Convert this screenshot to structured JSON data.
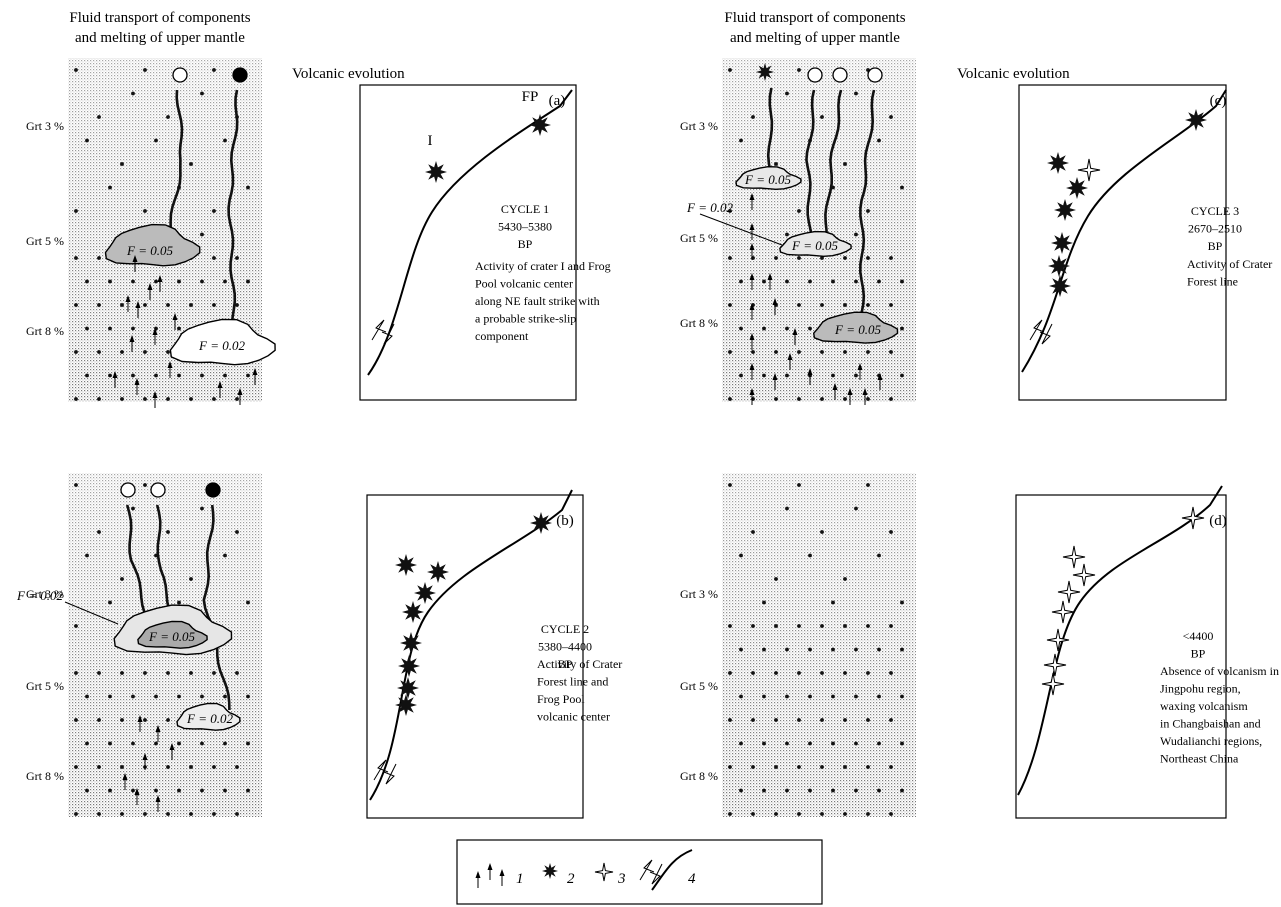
{
  "mantle_panels": [
    {
      "title": [
        "Fluid transport of components",
        "and melting of upper mantle"
      ],
      "grt": [
        "Grt 3 %",
        "Grt 5 %",
        "Grt 8 %"
      ],
      "melts": [
        "F = 0.05",
        "F = 0.02"
      ]
    },
    {
      "grt": [
        "Grt 3 %",
        "Grt 5 %",
        "Grt 8 %"
      ],
      "melts": [
        "F = 0.02",
        "F = 0.05",
        "F = 0.02"
      ]
    },
    {
      "title": [
        "Fluid transport of components",
        "and melting of upper mantle"
      ],
      "grt": [
        "Grt 3 %",
        "Grt 5 %",
        "Grt 8 %"
      ],
      "melts": [
        "F = 0.05",
        "F = 0.02",
        "F = 0.05",
        "F = 0.05"
      ]
    },
    {
      "grt": [
        "Grt 3 %",
        "Grt 5 %",
        "Grt 8 %"
      ]
    }
  ],
  "volcanic_panels": [
    {
      "title": "Volcanic evolution",
      "letter": "(a)",
      "vents": [
        "I",
        "FP"
      ],
      "text": [
        "CYCLE 1",
        "5430–5380",
        "BP",
        "Activity of crater I and Frog",
        "Pool volcanic center",
        "along NE fault strike with",
        "a probable strike-slip",
        "component"
      ]
    },
    {
      "letter": "(b)",
      "text": [
        "CYCLE 2",
        "5380–4400",
        "BP",
        "Activity of Crater",
        "Forest line and",
        "Frog Pool",
        "volcanic center"
      ]
    },
    {
      "title": "Volcanic evolution",
      "letter": "(c)",
      "text": [
        "CYCLE 3",
        "2670–2510",
        "BP",
        "Activity of Crater",
        "Forest line"
      ]
    },
    {
      "letter": "(d)",
      "text": [
        "<4400",
        "BP",
        "Absence of volcanism in",
        "Jingpohu region,",
        "waxing volcanism",
        "in Changbaishan and",
        "Wudalianchi regions,",
        "Northeast China"
      ]
    }
  ],
  "legend": [
    "1",
    "2",
    "3",
    "4"
  ]
}
